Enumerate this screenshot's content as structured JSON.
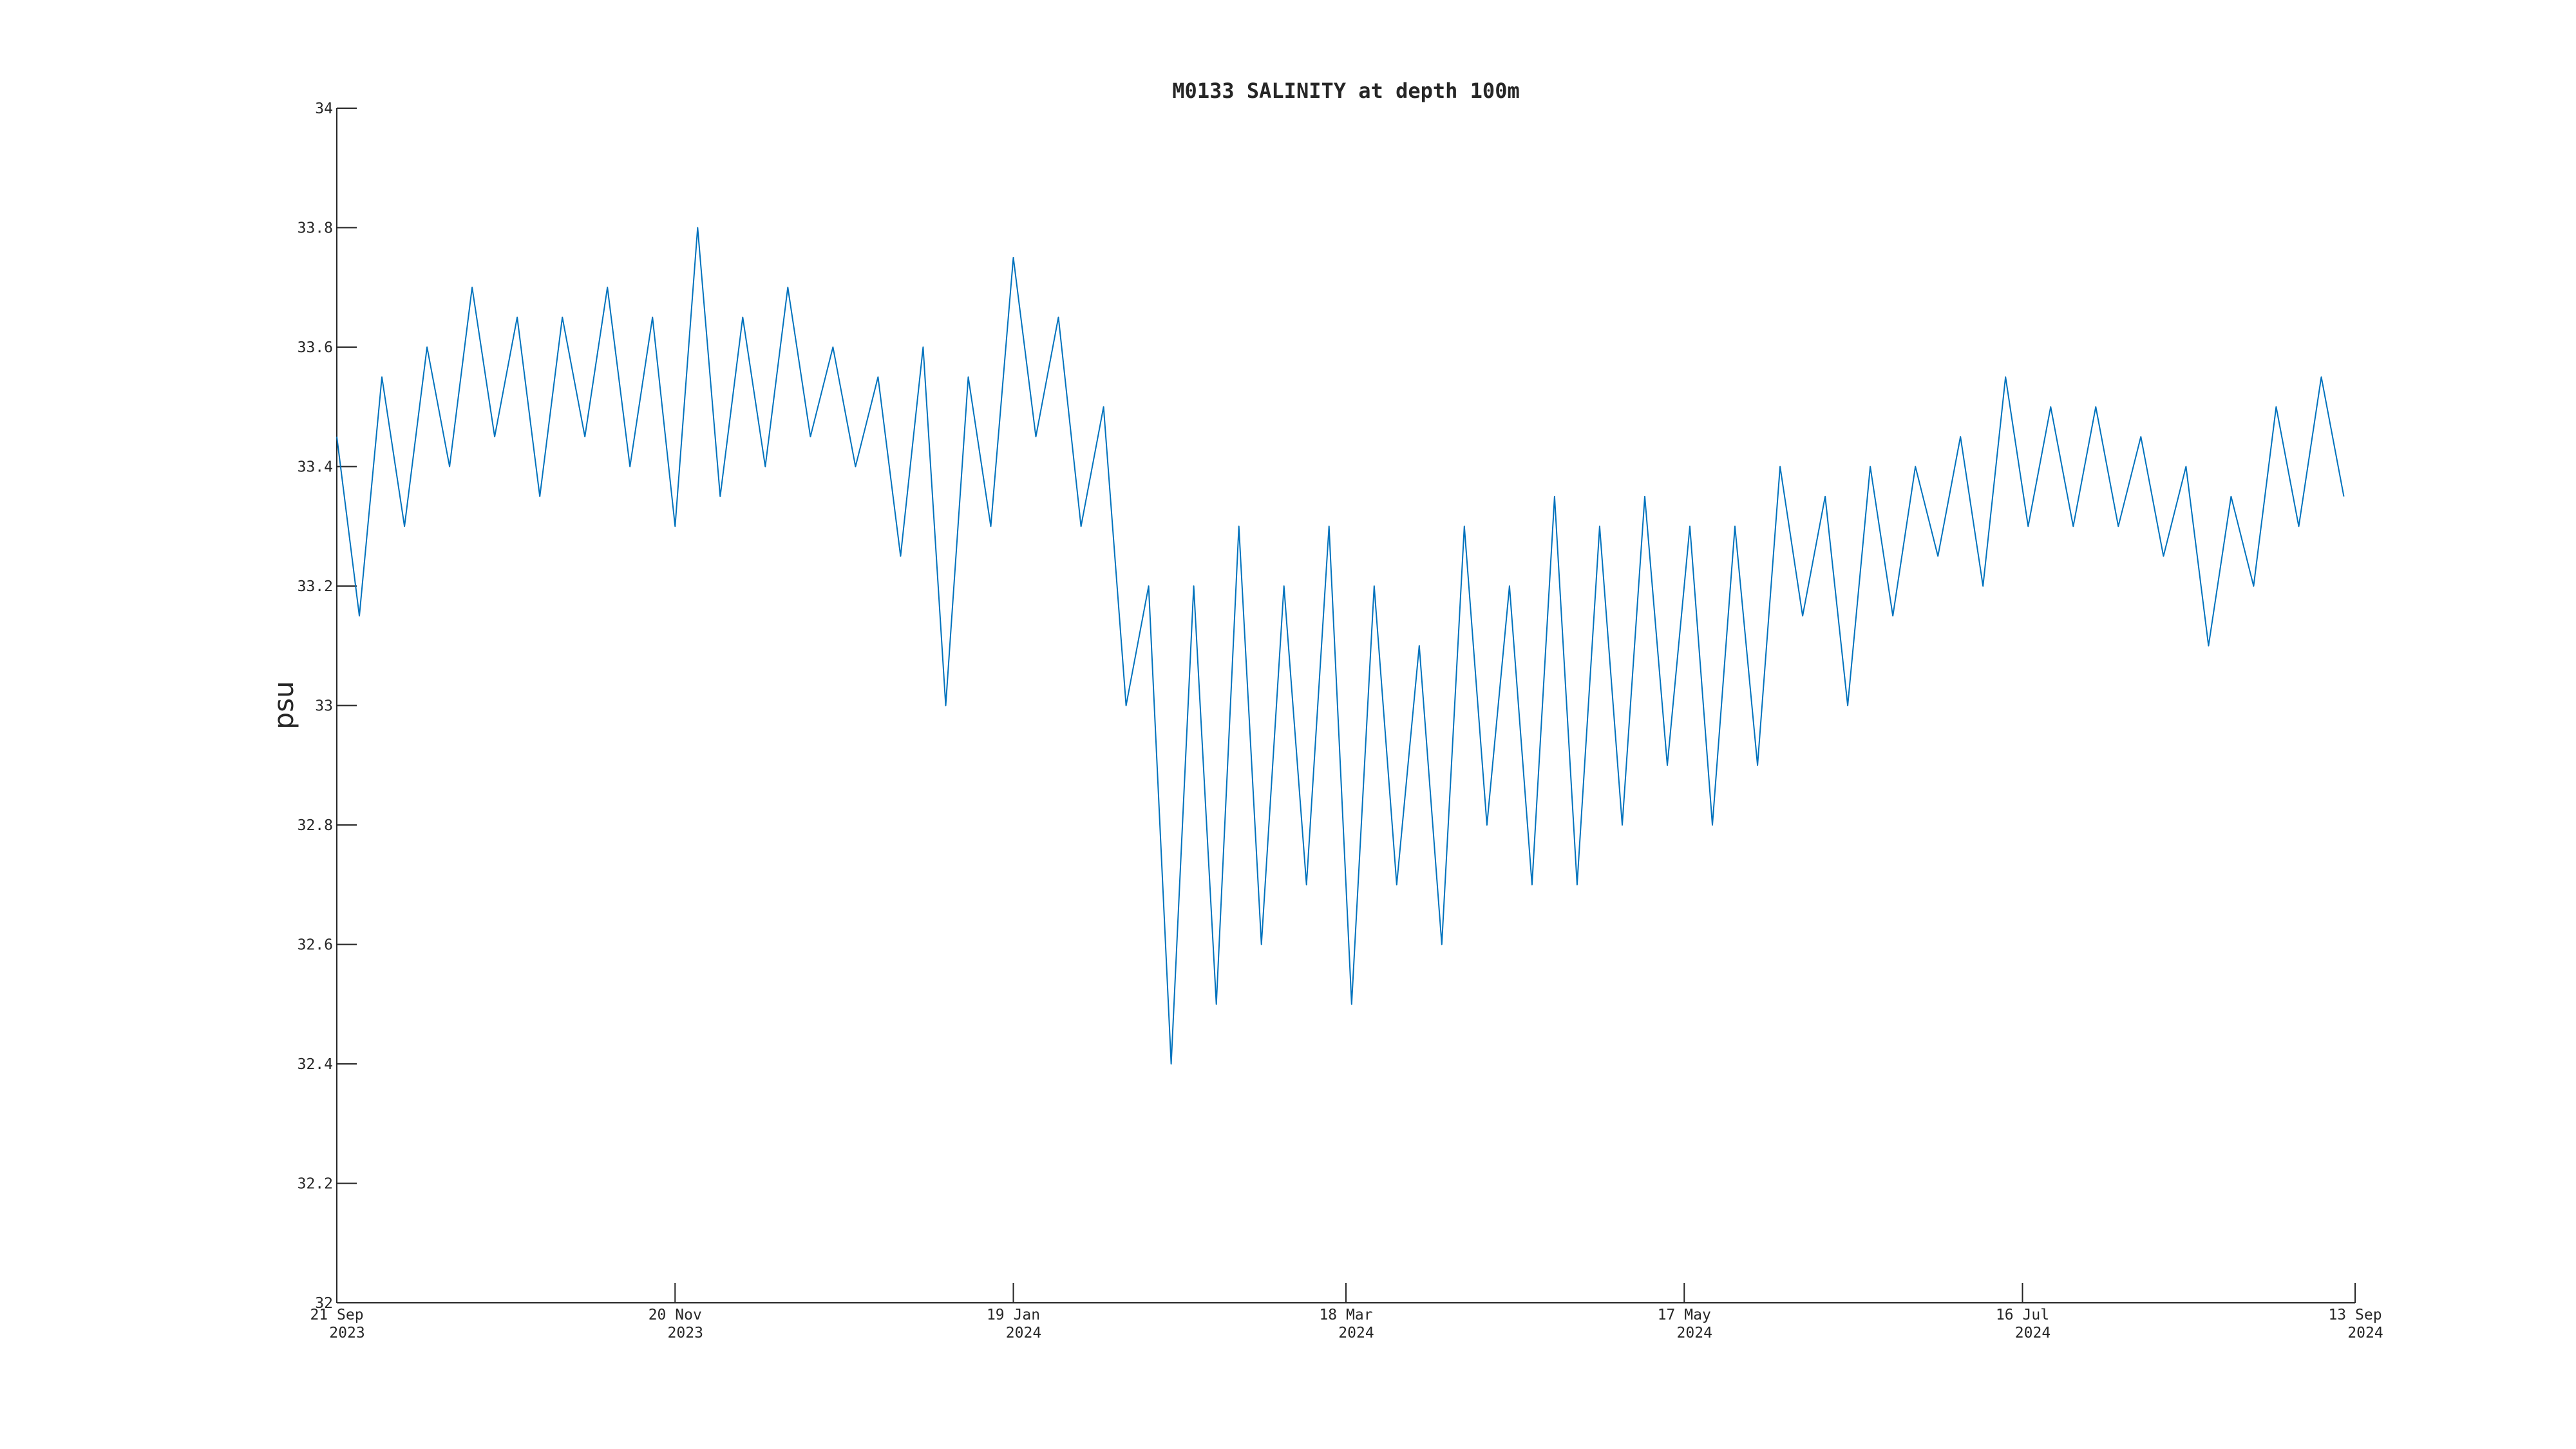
{
  "chart_data": {
    "type": "line",
    "title": "M0133 SALINITY at depth 100m",
    "ylabel": "psu",
    "color": "#0072BD",
    "x": [
      "2023-09-21",
      "2023-09-25",
      "2023-09-29",
      "2023-10-03",
      "2023-10-07",
      "2023-10-11",
      "2023-10-15",
      "2023-10-19",
      "2023-10-23",
      "2023-10-27",
      "2023-10-31",
      "2023-11-04",
      "2023-11-08",
      "2023-11-12",
      "2023-11-16",
      "2023-11-20",
      "2023-11-24",
      "2023-11-28",
      "2023-12-02",
      "2023-12-06",
      "2023-12-10",
      "2023-12-14",
      "2023-12-18",
      "2023-12-22",
      "2023-12-26",
      "2023-12-30",
      "2024-01-03",
      "2024-01-07",
      "2024-01-11",
      "2024-01-15",
      "2024-01-19",
      "2024-01-23",
      "2024-01-27",
      "2024-01-31",
      "2024-02-04",
      "2024-02-08",
      "2024-02-12",
      "2024-02-16",
      "2024-02-20",
      "2024-02-24",
      "2024-02-28",
      "2024-03-03",
      "2024-03-07",
      "2024-03-11",
      "2024-03-15",
      "2024-03-19",
      "2024-03-23",
      "2024-03-27",
      "2024-03-31",
      "2024-04-04",
      "2024-04-08",
      "2024-04-12",
      "2024-04-16",
      "2024-04-20",
      "2024-04-24",
      "2024-04-28",
      "2024-05-02",
      "2024-05-06",
      "2024-05-10",
      "2024-05-14",
      "2024-05-18",
      "2024-05-22",
      "2024-05-26",
      "2024-05-30",
      "2024-06-03",
      "2024-06-07",
      "2024-06-11",
      "2024-06-15",
      "2024-06-19",
      "2024-06-23",
      "2024-06-27",
      "2024-07-01",
      "2024-07-05",
      "2024-07-09",
      "2024-07-13",
      "2024-07-17",
      "2024-07-21",
      "2024-07-25",
      "2024-07-29",
      "2024-08-02",
      "2024-08-06",
      "2024-08-10",
      "2024-08-14",
      "2024-08-18",
      "2024-08-22",
      "2024-08-26",
      "2024-08-30",
      "2024-09-03",
      "2024-09-07",
      "2024-09-11"
    ],
    "values": [
      33.45,
      33.15,
      33.55,
      33.3,
      33.6,
      33.4,
      33.7,
      33.45,
      33.65,
      33.35,
      33.65,
      33.45,
      33.7,
      33.4,
      33.65,
      33.3,
      33.8,
      33.35,
      33.65,
      33.4,
      33.7,
      33.45,
      33.6,
      33.4,
      33.55,
      33.25,
      33.6,
      33.0,
      33.55,
      33.3,
      33.75,
      33.45,
      33.65,
      33.3,
      33.5,
      33.0,
      33.2,
      32.4,
      33.2,
      32.5,
      33.3,
      32.6,
      33.2,
      32.7,
      33.3,
      32.5,
      33.2,
      32.7,
      33.1,
      32.6,
      33.3,
      32.8,
      33.2,
      32.7,
      33.35,
      32.7,
      33.3,
      32.8,
      33.35,
      32.9,
      33.3,
      32.8,
      33.3,
      32.9,
      33.4,
      33.15,
      33.35,
      33.0,
      33.4,
      33.15,
      33.4,
      33.25,
      33.45,
      33.2,
      33.55,
      33.3,
      33.5,
      33.3,
      33.5,
      33.3,
      33.45,
      33.25,
      33.4,
      33.1,
      33.35,
      33.2,
      33.5,
      33.3,
      33.55,
      33.35
    ],
    "xlim": [
      "2023-09-21",
      "2024-09-13"
    ],
    "xticks": [
      {
        "value": "2023-09-21",
        "label": "21 Sep 2023"
      },
      {
        "value": "2023-11-20",
        "label": "20 Nov 2023"
      },
      {
        "value": "2024-01-19",
        "label": "19 Jan 2024"
      },
      {
        "value": "2024-03-18",
        "label": "18 Mar 2024"
      },
      {
        "value": "2024-05-17",
        "label": "17 May 2024"
      },
      {
        "value": "2024-07-16",
        "label": "16 Jul 2024"
      },
      {
        "value": "2024-09-13",
        "label": "13 Sep 2024"
      }
    ],
    "ylim": [
      32,
      34
    ],
    "yticks": [
      32,
      32.2,
      32.4,
      32.6,
      32.8,
      33,
      33.2,
      33.4,
      33.6,
      33.8,
      34
    ]
  }
}
